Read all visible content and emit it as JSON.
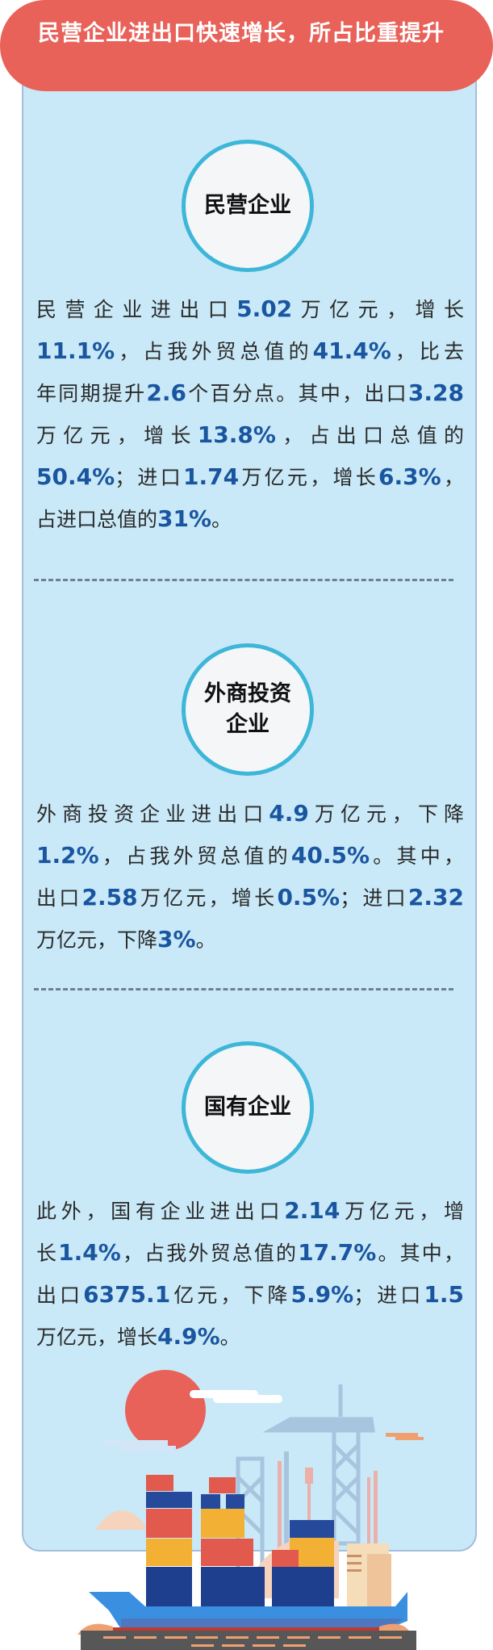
{
  "header": {
    "title": "民营企业进出口快速增长，所占比重提升"
  },
  "colors": {
    "header_red": "#E8625A",
    "panel_blue": "#C9E9F8",
    "number_blue": "#1A56A0",
    "circle_border": "#3DB6D8"
  },
  "sections": [
    {
      "badge": "民营企业",
      "lines": [
        [
          {
            "t": "民营企业进出口"
          },
          {
            "t": "5.02",
            "b": 1
          },
          {
            "t": "万亿元，增长"
          }
        ],
        [
          {
            "t": "11.1%",
            "b": 1
          },
          {
            "t": "，占我外贸总值的"
          },
          {
            "t": "41.4%",
            "b": 1
          },
          {
            "t": "，比去"
          }
        ],
        [
          {
            "t": "年同期提升"
          },
          {
            "t": "2.6",
            "b": 1
          },
          {
            "t": "个百分点。其中，出口"
          },
          {
            "t": "3.28",
            "b": 1
          }
        ],
        [
          {
            "t": "万亿元，增长"
          },
          {
            "t": "13.8%",
            "b": 1
          },
          {
            "t": "，占出口总值的"
          }
        ],
        [
          {
            "t": "50.4%",
            "b": 1
          },
          {
            "t": "；进口"
          },
          {
            "t": "1.74",
            "b": 1
          },
          {
            "t": "万亿元，增长"
          },
          {
            "t": "6.3%",
            "b": 1
          },
          {
            "t": "，"
          }
        ],
        [
          {
            "t": "占进口总值的"
          },
          {
            "t": "31%",
            "b": 1
          },
          {
            "t": "。"
          }
        ]
      ]
    },
    {
      "badge": "外商投资企业",
      "lines": [
        [
          {
            "t": "外商投资企业进出口"
          },
          {
            "t": "4.9",
            "b": 1
          },
          {
            "t": "万亿元，下降"
          }
        ],
        [
          {
            "t": "1.2%",
            "b": 1
          },
          {
            "t": "，占我外贸总值的"
          },
          {
            "t": "40.5%",
            "b": 1
          },
          {
            "t": "。其中，"
          }
        ],
        [
          {
            "t": "出口"
          },
          {
            "t": "2.58",
            "b": 1
          },
          {
            "t": "万亿元，增长"
          },
          {
            "t": "0.5%",
            "b": 1
          },
          {
            "t": "；进口"
          },
          {
            "t": "2.32",
            "b": 1
          }
        ],
        [
          {
            "t": "万亿元，下降"
          },
          {
            "t": "3%",
            "b": 1
          },
          {
            "t": "。"
          }
        ]
      ]
    },
    {
      "badge": "国有企业",
      "lines": [
        [
          {
            "t": "此外，国有企业进出口"
          },
          {
            "t": "2.14",
            "b": 1
          },
          {
            "t": "万亿元，增"
          }
        ],
        [
          {
            "t": "长"
          },
          {
            "t": "1.4%",
            "b": 1
          },
          {
            "t": "，占我外贸总值的"
          },
          {
            "t": "17.7%",
            "b": 1
          },
          {
            "t": "。其中，"
          }
        ],
        [
          {
            "t": "出口"
          },
          {
            "t": "6375.1",
            "b": 1
          },
          {
            "t": "亿元，下降"
          },
          {
            "t": "5.9%",
            "b": 1
          },
          {
            "t": "；进口"
          },
          {
            "t": "1.5",
            "b": 1
          }
        ],
        [
          {
            "t": "万亿元，增长"
          },
          {
            "t": "4.9%",
            "b": 1
          },
          {
            "t": "。"
          }
        ]
      ]
    }
  ],
  "illustration": {
    "icon": "cargo-ship-port-icon"
  }
}
